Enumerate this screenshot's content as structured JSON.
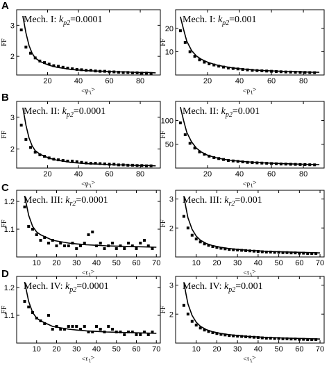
{
  "chart_data": [
    {
      "id": "A1",
      "panel_letter": "A",
      "type": "scatter",
      "mech_label": "Mech. I: ",
      "k_label": "k",
      "k_sub": "p2",
      "k_value": "=0.0001",
      "ylabel": "FF",
      "xlabel_main": "<p",
      "xlabel_sub": "1",
      "xlabel_end": ">",
      "xlim": [
        0,
        93
      ],
      "ylim": [
        1.4,
        3.5
      ],
      "xticks": [
        20,
        40,
        60,
        80
      ],
      "yticks": [
        2,
        3
      ],
      "points": {
        "x": [
          3,
          6,
          9,
          12,
          15,
          18,
          21,
          24,
          27,
          30,
          33,
          36,
          39,
          42,
          45,
          48,
          51,
          54,
          57,
          60,
          63,
          66,
          69,
          72,
          75,
          78,
          81,
          84,
          87
        ],
        "y": [
          2.85,
          2.3,
          2.1,
          1.95,
          1.85,
          1.8,
          1.75,
          1.7,
          1.68,
          1.65,
          1.62,
          1.6,
          1.58,
          1.57,
          1.55,
          1.55,
          1.53,
          1.52,
          1.52,
          1.5,
          1.5,
          1.49,
          1.48,
          1.48,
          1.47,
          1.47,
          1.46,
          1.46,
          1.45
        ]
      },
      "curve": {
        "x": [
          4,
          6,
          8,
          10,
          12,
          15,
          18,
          22,
          26,
          30,
          35,
          40,
          45,
          50,
          55,
          60,
          65,
          70,
          75,
          80,
          85,
          90
        ],
        "y": [
          3.3,
          2.75,
          2.35,
          2.1,
          1.95,
          1.84,
          1.77,
          1.7,
          1.65,
          1.62,
          1.58,
          1.56,
          1.54,
          1.53,
          1.52,
          1.51,
          1.5,
          1.5,
          1.49,
          1.48,
          1.48,
          1.47
        ]
      }
    },
    {
      "id": "A2",
      "panel_letter": "",
      "type": "scatter",
      "mech_label": "Mech. I: ",
      "k_label": "k",
      "k_sub": "p2",
      "k_value": "=0.001",
      "ylabel": "FF",
      "xlabel_main": "<p",
      "xlabel_sub": "1",
      "xlabel_end": ">",
      "xlim": [
        0,
        93
      ],
      "ylim": [
        0,
        28
      ],
      "xticks": [
        20,
        40,
        60,
        80
      ],
      "yticks": [
        10,
        20
      ],
      "points": {
        "x": [
          3,
          6,
          9,
          12,
          15,
          18,
          21,
          24,
          27,
          30,
          33,
          36,
          39,
          42,
          45,
          48,
          51,
          54,
          57,
          60,
          63,
          66,
          69,
          72,
          75,
          78,
          81,
          84,
          87
        ],
        "y": [
          19,
          14,
          10,
          8,
          6.5,
          5.5,
          4.8,
          4.3,
          3.8,
          3.4,
          3.0,
          2.8,
          2.6,
          2.4,
          2.2,
          2.0,
          1.9,
          1.8,
          1.7,
          1.6,
          1.5,
          1.4,
          1.3,
          1.25,
          1.2,
          1.15,
          1.1,
          1.05,
          1.0
        ]
      },
      "curve": {
        "x": [
          3,
          5,
          7,
          10,
          13,
          16,
          20,
          25,
          30,
          35,
          40,
          45,
          50,
          55,
          60,
          65,
          70,
          75,
          80,
          85,
          90
        ],
        "y": [
          25,
          19.5,
          14.5,
          10.5,
          8.2,
          6.8,
          5.5,
          4.4,
          3.7,
          3.1,
          2.7,
          2.4,
          2.1,
          1.9,
          1.75,
          1.6,
          1.5,
          1.4,
          1.3,
          1.2,
          1.15
        ]
      }
    },
    {
      "id": "B1",
      "panel_letter": "B",
      "type": "scatter",
      "mech_label": "Mech. II: ",
      "k_label": "k",
      "k_sub": "p2",
      "k_value": "=0.0001",
      "ylabel": "FF",
      "xlabel_main": "<p",
      "xlabel_sub": "1",
      "xlabel_end": ">",
      "xlim": [
        0,
        93
      ],
      "ylim": [
        1.4,
        3.5
      ],
      "xticks": [
        20,
        40,
        60,
        80
      ],
      "yticks": [
        2,
        3
      ],
      "points": {
        "x": [
          3,
          6,
          9,
          12,
          15,
          18,
          21,
          24,
          27,
          30,
          33,
          36,
          39,
          42,
          45,
          48,
          51,
          54,
          57,
          60,
          63,
          66,
          69,
          72,
          75,
          78,
          81,
          84,
          87
        ],
        "y": [
          2.75,
          2.3,
          2.05,
          1.9,
          1.82,
          1.77,
          1.72,
          1.68,
          1.66,
          1.64,
          1.62,
          1.62,
          1.6,
          1.58,
          1.56,
          1.55,
          1.55,
          1.54,
          1.53,
          1.52,
          1.52,
          1.5,
          1.5,
          1.49,
          1.49,
          1.48,
          1.48,
          1.47,
          1.47
        ]
      },
      "curve": {
        "x": [
          4,
          6,
          8,
          10,
          12,
          15,
          18,
          22,
          26,
          30,
          35,
          40,
          45,
          50,
          55,
          60,
          65,
          70,
          75,
          80,
          85,
          90
        ],
        "y": [
          3.3,
          2.75,
          2.35,
          2.1,
          1.95,
          1.84,
          1.77,
          1.7,
          1.65,
          1.62,
          1.58,
          1.56,
          1.54,
          1.53,
          1.52,
          1.51,
          1.5,
          1.5,
          1.49,
          1.48,
          1.48,
          1.47
        ]
      }
    },
    {
      "id": "B2",
      "panel_letter": "",
      "type": "scatter",
      "mech_label": "Mech. II: ",
      "k_label": "k",
      "k_sub": "p2",
      "k_value": "=0.001",
      "ylabel": "FF",
      "xlabel_main": "<p",
      "xlabel_sub": "1",
      "xlabel_end": ">",
      "xlim": [
        0,
        93
      ],
      "ylim": [
        0,
        140
      ],
      "xticks": [
        20,
        40,
        60,
        80
      ],
      "yticks": [
        50,
        100
      ],
      "points": {
        "x": [
          3,
          6,
          9,
          12,
          15,
          18,
          21,
          24,
          27,
          30,
          33,
          36,
          39,
          42,
          45,
          48,
          51,
          54,
          57,
          60,
          63,
          66,
          69,
          72,
          75,
          78,
          81,
          84,
          87
        ],
        "y": [
          95,
          70,
          52,
          42,
          34,
          29,
          25,
          22,
          20,
          18,
          16,
          15,
          14,
          13,
          12,
          11.5,
          11,
          10.5,
          10,
          9.5,
          9,
          8.5,
          8.3,
          8,
          7.8,
          7.5,
          7.3,
          7,
          6.8
        ]
      },
      "curve": {
        "x": [
          3,
          5,
          7,
          10,
          13,
          16,
          20,
          25,
          30,
          35,
          40,
          45,
          50,
          55,
          60,
          65,
          70,
          75,
          80,
          85,
          90
        ],
        "y": [
          128,
          100,
          75,
          55,
          42,
          34,
          27,
          22,
          18.5,
          16,
          14.5,
          13,
          12,
          11,
          10.3,
          9.6,
          9,
          8.5,
          8,
          7.6,
          7.2
        ]
      }
    },
    {
      "id": "C1",
      "panel_letter": "C",
      "type": "scatter",
      "mech_label": "Mech. III: ",
      "k_label": "k",
      "k_sub": "r2",
      "k_value": "=0.0001",
      "ylabel": "FF",
      "xlabel_main": "<r",
      "xlabel_sub": "1",
      "xlabel_end": ">",
      "xlim": [
        0,
        72
      ],
      "ylim": [
        1.0,
        1.24
      ],
      "xticks": [
        10,
        20,
        30,
        40,
        50,
        60,
        70
      ],
      "yticks": [
        1.1,
        1.2
      ],
      "points": {
        "x": [
          4,
          6,
          8,
          10,
          12,
          14,
          16,
          18,
          20,
          22,
          24,
          26,
          28,
          30,
          32,
          34,
          36,
          38,
          40,
          42,
          44,
          46,
          48,
          50,
          52,
          54,
          56,
          58,
          60,
          62,
          64,
          66,
          68
        ],
        "y": [
          1.18,
          1.11,
          1.1,
          1.08,
          1.06,
          1.07,
          1.05,
          1.06,
          1.04,
          1.05,
          1.04,
          1.04,
          1.05,
          1.03,
          1.04,
          1.05,
          1.08,
          1.09,
          1.04,
          1.05,
          1.03,
          1.04,
          1.05,
          1.03,
          1.04,
          1.03,
          1.05,
          1.04,
          1.03,
          1.05,
          1.06,
          1.04,
          1.03
        ]
      },
      "curve": {
        "x": [
          4,
          6,
          8,
          10,
          12,
          15,
          18,
          22,
          26,
          30,
          35,
          40,
          45,
          50,
          55,
          60,
          65,
          70
        ],
        "y": [
          1.22,
          1.15,
          1.11,
          1.09,
          1.08,
          1.07,
          1.06,
          1.055,
          1.05,
          1.047,
          1.044,
          1.042,
          1.04,
          1.039,
          1.038,
          1.037,
          1.036,
          1.035
        ]
      }
    },
    {
      "id": "C2",
      "panel_letter": "",
      "type": "scatter",
      "mech_label": "Mech. III: ",
      "k_label": "k",
      "k_sub": "r2",
      "k_value": "=0.001",
      "ylabel": "FF",
      "xlabel_main": "<r",
      "xlabel_sub": "1",
      "xlabel_end": ">",
      "xlim": [
        0,
        72
      ],
      "ylim": [
        1.0,
        3.3
      ],
      "xticks": [
        10,
        20,
        30,
        40,
        50,
        60,
        70
      ],
      "yticks": [
        2,
        3
      ],
      "points": {
        "x": [
          4,
          6,
          8,
          10,
          12,
          14,
          16,
          18,
          20,
          22,
          24,
          26,
          28,
          30,
          32,
          34,
          36,
          38,
          40,
          42,
          44,
          46,
          48,
          50,
          52,
          54,
          56,
          58,
          60,
          62,
          64,
          66,
          68
        ],
        "y": [
          2.4,
          2.0,
          1.75,
          1.62,
          1.52,
          1.45,
          1.4,
          1.36,
          1.33,
          1.3,
          1.28,
          1.26,
          1.25,
          1.24,
          1.23,
          1.22,
          1.21,
          1.2,
          1.19,
          1.18,
          1.17,
          1.17,
          1.16,
          1.16,
          1.15,
          1.15,
          1.14,
          1.14,
          1.13,
          1.13,
          1.12,
          1.12,
          1.12
        ]
      },
      "curve": {
        "x": [
          4,
          5,
          6,
          8,
          10,
          12,
          15,
          18,
          22,
          26,
          30,
          35,
          40,
          45,
          50,
          55,
          60,
          65,
          70
        ],
        "y": [
          3.1,
          2.7,
          2.35,
          1.95,
          1.72,
          1.58,
          1.46,
          1.39,
          1.33,
          1.29,
          1.26,
          1.23,
          1.21,
          1.19,
          1.18,
          1.17,
          1.16,
          1.15,
          1.14
        ]
      }
    },
    {
      "id": "D1",
      "panel_letter": "D",
      "type": "scatter",
      "mech_label": "Mech. IV: ",
      "k_label": "k",
      "k_sub": "p2",
      "k_value": "=0.0001",
      "ylabel": "FF",
      "xlabel_main": "<r",
      "xlabel_sub": "1",
      "xlabel_end": ">",
      "xlim": [
        0,
        72
      ],
      "ylim": [
        1.0,
        1.24
      ],
      "xticks": [
        10,
        20,
        30,
        40,
        50,
        60,
        70
      ],
      "yticks": [
        1.1,
        1.2
      ],
      "points": {
        "x": [
          4,
          6,
          8,
          10,
          12,
          14,
          16,
          18,
          20,
          22,
          24,
          26,
          28,
          30,
          32,
          34,
          36,
          38,
          40,
          42,
          44,
          46,
          48,
          50,
          52,
          54,
          56,
          58,
          60,
          62,
          64,
          66,
          68
        ],
        "y": [
          1.15,
          1.13,
          1.11,
          1.09,
          1.08,
          1.07,
          1.1,
          1.05,
          1.06,
          1.05,
          1.05,
          1.06,
          1.06,
          1.06,
          1.05,
          1.06,
          1.04,
          1.04,
          1.06,
          1.05,
          1.04,
          1.06,
          1.05,
          1.04,
          1.04,
          1.03,
          1.04,
          1.04,
          1.03,
          1.03,
          1.04,
          1.03,
          1.04
        ]
      },
      "curve": {
        "x": [
          4,
          6,
          8,
          10,
          12,
          15,
          18,
          22,
          26,
          30,
          35,
          40,
          45,
          50,
          55,
          60,
          65,
          70
        ],
        "y": [
          1.22,
          1.15,
          1.11,
          1.09,
          1.08,
          1.07,
          1.06,
          1.055,
          1.05,
          1.047,
          1.044,
          1.042,
          1.04,
          1.039,
          1.038,
          1.037,
          1.036,
          1.035
        ]
      }
    },
    {
      "id": "D2",
      "panel_letter": "",
      "type": "scatter",
      "mech_label": "Mech. IV: ",
      "k_label": "k",
      "k_sub": "p2",
      "k_value": "=0.001",
      "ylabel": "FF",
      "xlabel_main": "<r",
      "xlabel_sub": "1",
      "xlabel_end": ">",
      "xlim": [
        0,
        72
      ],
      "ylim": [
        1.0,
        3.3
      ],
      "xticks": [
        10,
        20,
        30,
        40,
        50,
        60,
        70
      ],
      "yticks": [
        2,
        3
      ],
      "points": {
        "x": [
          4,
          6,
          8,
          10,
          12,
          14,
          16,
          18,
          20,
          22,
          24,
          26,
          28,
          30,
          32,
          34,
          36,
          38,
          40,
          42,
          44,
          46,
          48,
          50,
          52,
          54,
          56,
          58,
          60,
          62,
          64,
          66,
          68
        ],
        "y": [
          2.3,
          2.0,
          1.75,
          1.62,
          1.52,
          1.45,
          1.4,
          1.36,
          1.33,
          1.3,
          1.28,
          1.26,
          1.25,
          1.24,
          1.23,
          1.22,
          1.21,
          1.2,
          1.19,
          1.18,
          1.17,
          1.17,
          1.16,
          1.16,
          1.15,
          1.15,
          1.14,
          1.14,
          1.13,
          1.13,
          1.12,
          1.12,
          1.12
        ]
      },
      "curve": {
        "x": [
          4,
          5,
          6,
          8,
          10,
          12,
          15,
          18,
          22,
          26,
          30,
          35,
          40,
          45,
          50,
          55,
          60,
          65,
          70
        ],
        "y": [
          3.1,
          2.7,
          2.35,
          1.95,
          1.72,
          1.58,
          1.46,
          1.39,
          1.33,
          1.29,
          1.26,
          1.23,
          1.21,
          1.19,
          1.18,
          1.17,
          1.16,
          1.15,
          1.14
        ]
      }
    }
  ]
}
